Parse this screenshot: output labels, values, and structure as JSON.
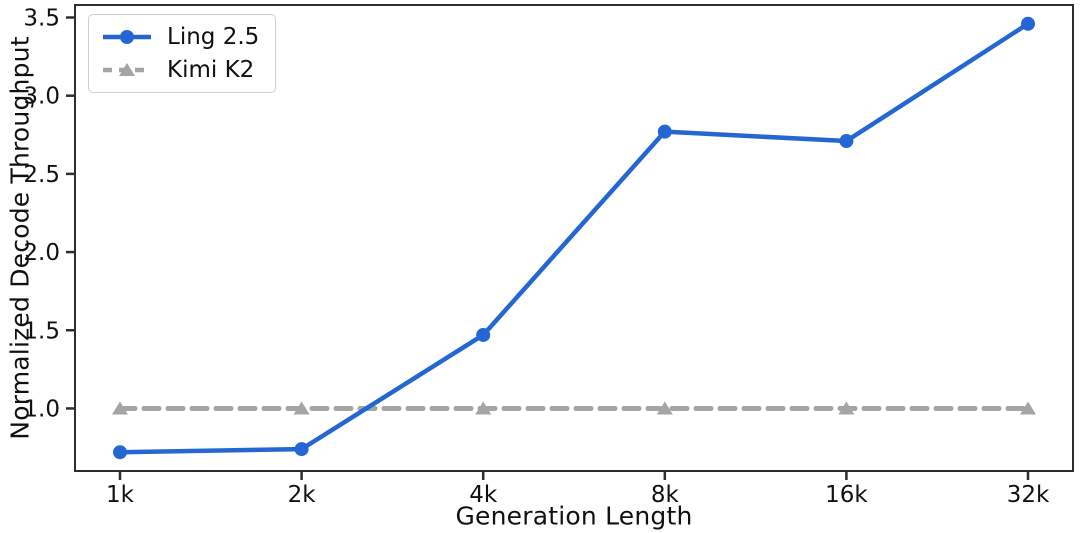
{
  "chart_data": {
    "type": "line",
    "title": "",
    "xlabel": "Generation Length",
    "ylabel": "Normalized Decode Throughput",
    "categories": [
      "1k",
      "2k",
      "4k",
      "8k",
      "16k",
      "32k"
    ],
    "series": [
      {
        "name": "Ling 2.5",
        "values": [
          0.72,
          0.74,
          1.47,
          2.77,
          2.71,
          3.46
        ],
        "color": "#2467d2",
        "line_style": "solid",
        "marker": "circle"
      },
      {
        "name": "Kimi K2",
        "values": [
          1.0,
          1.0,
          1.0,
          1.0,
          1.0,
          1.0
        ],
        "color": "#a5a5a5",
        "line_style": "dashed",
        "marker": "triangle"
      }
    ],
    "ylim": [
      0.6,
      3.58
    ],
    "yticks": [
      1.0,
      1.5,
      2.0,
      2.5,
      3.0,
      3.5
    ],
    "y_tick_labels": [
      "1.0",
      "1.5",
      "2.0",
      "2.5",
      "3.0",
      "3.5"
    ],
    "legend_position": "upper-left",
    "grid": false,
    "colors": {
      "axis": "#2e2e2e",
      "tick_text": "#111111",
      "legend_border": "#d0d0d0",
      "background": "#ffffff"
    }
  }
}
